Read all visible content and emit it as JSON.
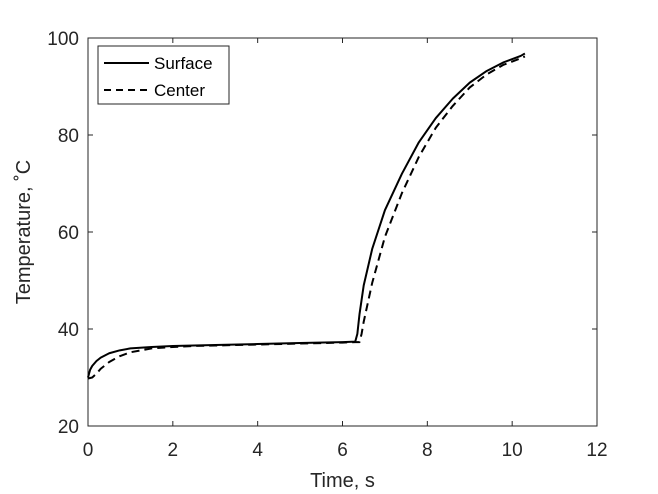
{
  "chart_data": {
    "type": "line",
    "xlabel": "Time, s",
    "ylabel": "Temperature, ˚C",
    "xlim": [
      0,
      12
    ],
    "ylim": [
      20,
      100
    ],
    "xticks": [
      0,
      2,
      4,
      6,
      8,
      10,
      12
    ],
    "yticks": [
      20,
      40,
      60,
      80,
      100
    ],
    "grid": false,
    "box": true,
    "legend": {
      "location": "top-left",
      "entries": [
        "Surface",
        "Center"
      ]
    },
    "series": [
      {
        "name": "Surface",
        "style": "solid",
        "color": "#000000",
        "x": [
          0,
          0.05,
          0.1,
          0.2,
          0.3,
          0.5,
          0.75,
          1.0,
          1.5,
          2.0,
          2.5,
          3.0,
          4.0,
          5.0,
          6.0,
          6.3,
          6.35,
          6.4,
          6.5,
          6.7,
          7.0,
          7.4,
          7.8,
          8.2,
          8.6,
          9.0,
          9.4,
          9.8,
          10.2,
          10.3
        ],
        "y": [
          30.0,
          31.6,
          32.4,
          33.4,
          34.1,
          35.0,
          35.6,
          36.0,
          36.3,
          36.5,
          36.6,
          36.7,
          36.9,
          37.1,
          37.3,
          37.4,
          39.0,
          43.0,
          49.0,
          56.5,
          64.5,
          72.0,
          78.5,
          83.5,
          87.5,
          90.8,
          93.2,
          95.0,
          96.3,
          96.8
        ]
      },
      {
        "name": "Center",
        "style": "dashed",
        "color": "#000000",
        "x": [
          0,
          0.1,
          0.2,
          0.3,
          0.5,
          0.75,
          1.0,
          1.5,
          2.0,
          2.5,
          3.0,
          4.0,
          5.0,
          6.0,
          6.3,
          6.4,
          6.45,
          6.5,
          6.7,
          7.0,
          7.4,
          7.8,
          8.2,
          8.6,
          9.0,
          9.4,
          9.8,
          10.2,
          10.3
        ],
        "y": [
          29.8,
          30.0,
          30.8,
          31.8,
          33.2,
          34.4,
          35.2,
          36.0,
          36.3,
          36.5,
          36.6,
          36.8,
          37.0,
          37.2,
          37.3,
          37.3,
          39.0,
          41.5,
          49.5,
          59.0,
          68.0,
          75.5,
          81.5,
          86.0,
          89.8,
          92.5,
          94.5,
          95.8,
          96.2
        ]
      }
    ]
  }
}
